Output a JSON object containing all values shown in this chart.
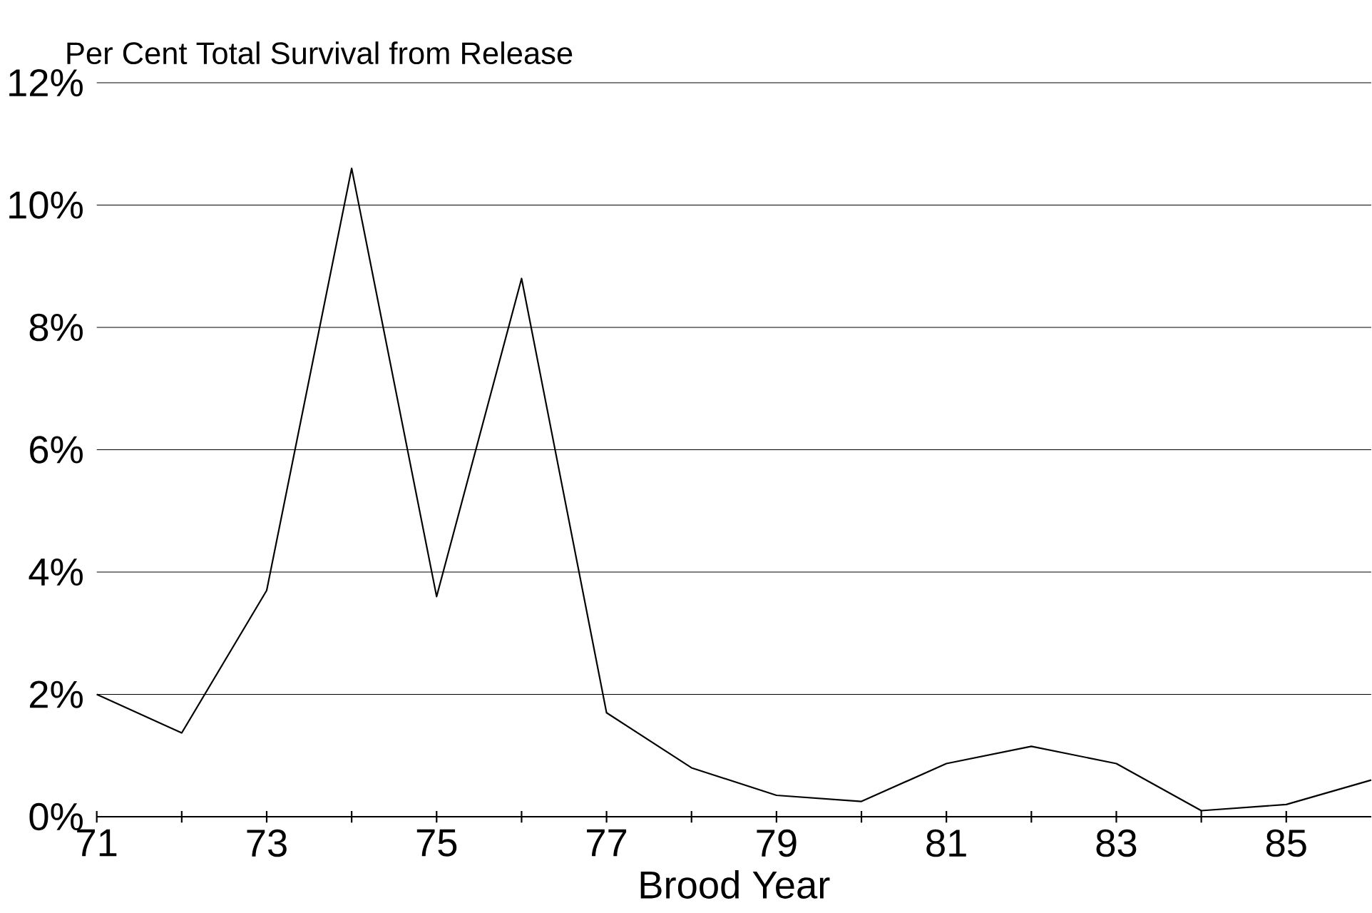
{
  "chart_data": {
    "type": "line",
    "ylabel": "Per Cent Total Survival from Release",
    "xlabel": "Brood Year",
    "x": [
      71,
      72,
      73,
      74,
      75,
      76,
      77,
      78,
      79,
      80,
      81,
      82,
      83,
      84,
      85,
      86
    ],
    "values": [
      2.0,
      1.37,
      3.7,
      10.6,
      3.6,
      8.8,
      1.7,
      0.8,
      0.35,
      0.25,
      0.87,
      1.15,
      0.87,
      0.1,
      0.2,
      0.6
    ],
    "color": "#000000",
    "xlim": [
      71,
      86
    ],
    "xticks": [
      71,
      {
        "value": 72,
        "label": null
      },
      73,
      {
        "value": 74,
        "label": null
      },
      75,
      {
        "value": 76,
        "label": null
      },
      77,
      {
        "value": 78,
        "label": null
      },
      79,
      {
        "value": 80,
        "label": null
      },
      81,
      {
        "value": 82,
        "label": null
      },
      83,
      {
        "value": 84,
        "label": null
      },
      85
    ],
    "ylim": [
      0,
      12
    ],
    "yticks": [
      {
        "value": 0,
        "label": "0%"
      },
      {
        "value": 2,
        "label": "2%"
      },
      {
        "value": 4,
        "label": "4%"
      },
      {
        "value": 6,
        "label": "6%"
      },
      {
        "value": 8,
        "label": "8%"
      },
      {
        "value": 10,
        "label": "10%"
      },
      {
        "value": 12,
        "label": "12%"
      }
    ],
    "grid": "y",
    "marker": "none",
    "line_style": "solid"
  }
}
